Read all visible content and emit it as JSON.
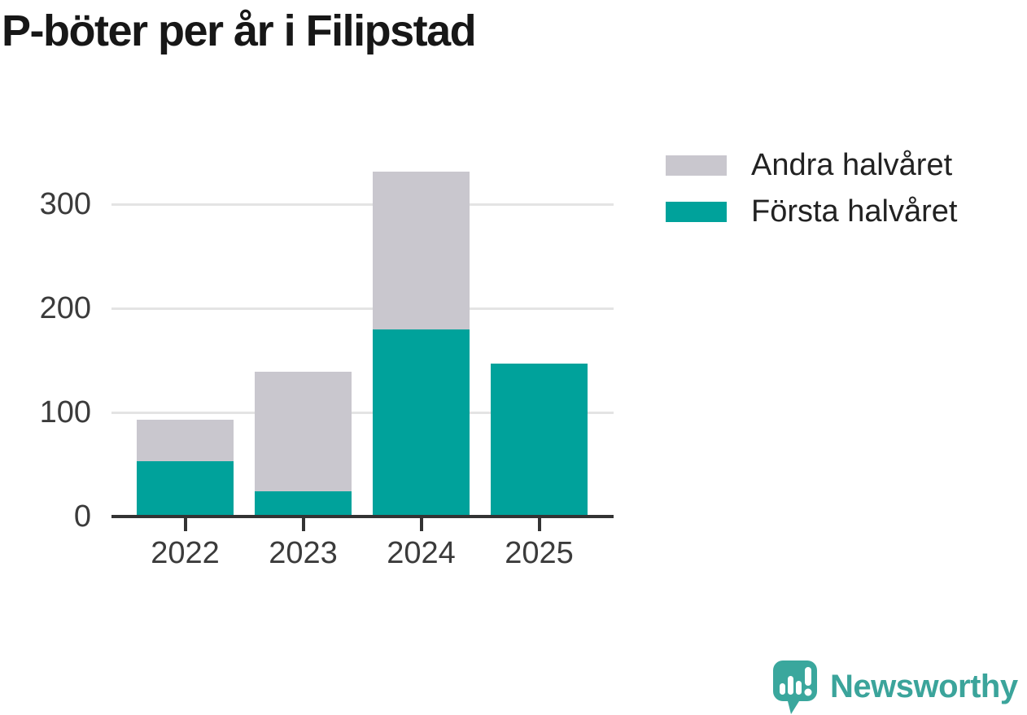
{
  "title": "P-böter per år i Filipstad",
  "chart_data": {
    "type": "bar",
    "stacked": true,
    "title": "P-böter per år i Filipstad",
    "categories": [
      "2022",
      "2023",
      "2024",
      "2025"
    ],
    "series": [
      {
        "name": "Första halvåret",
        "color": "#00a29b",
        "values": [
          53,
          24,
          180,
          147
        ]
      },
      {
        "name": "Andra halvåret",
        "color": "#c9c7ce",
        "values": [
          40,
          115,
          151,
          0
        ]
      }
    ],
    "totals": [
      93,
      139,
      331,
      147
    ],
    "xlabel": "",
    "ylabel": "",
    "yticks": [
      0,
      100,
      200,
      300
    ],
    "ylim": [
      0,
      345
    ],
    "grid": true,
    "legend_position": "top-right"
  },
  "legend": [
    {
      "label": "Andra halvåret",
      "color": "#c9c7ce"
    },
    {
      "label": "Första halvåret",
      "color": "#00a29b"
    }
  ],
  "branding": {
    "logo_text": "Newsworthy",
    "logo_icon": "newsworthy-speech-bubble-chart-icon"
  },
  "colors": {
    "forsta_halvaret": "#00a29b",
    "andra_halvaret": "#c9c7ce",
    "gridline": "#e4e4e4",
    "axis": "#333333",
    "tick_text": "#3b3b3b",
    "title_text": "#171717",
    "logo_teal": "#3ba49b",
    "background": "#ffffff"
  }
}
